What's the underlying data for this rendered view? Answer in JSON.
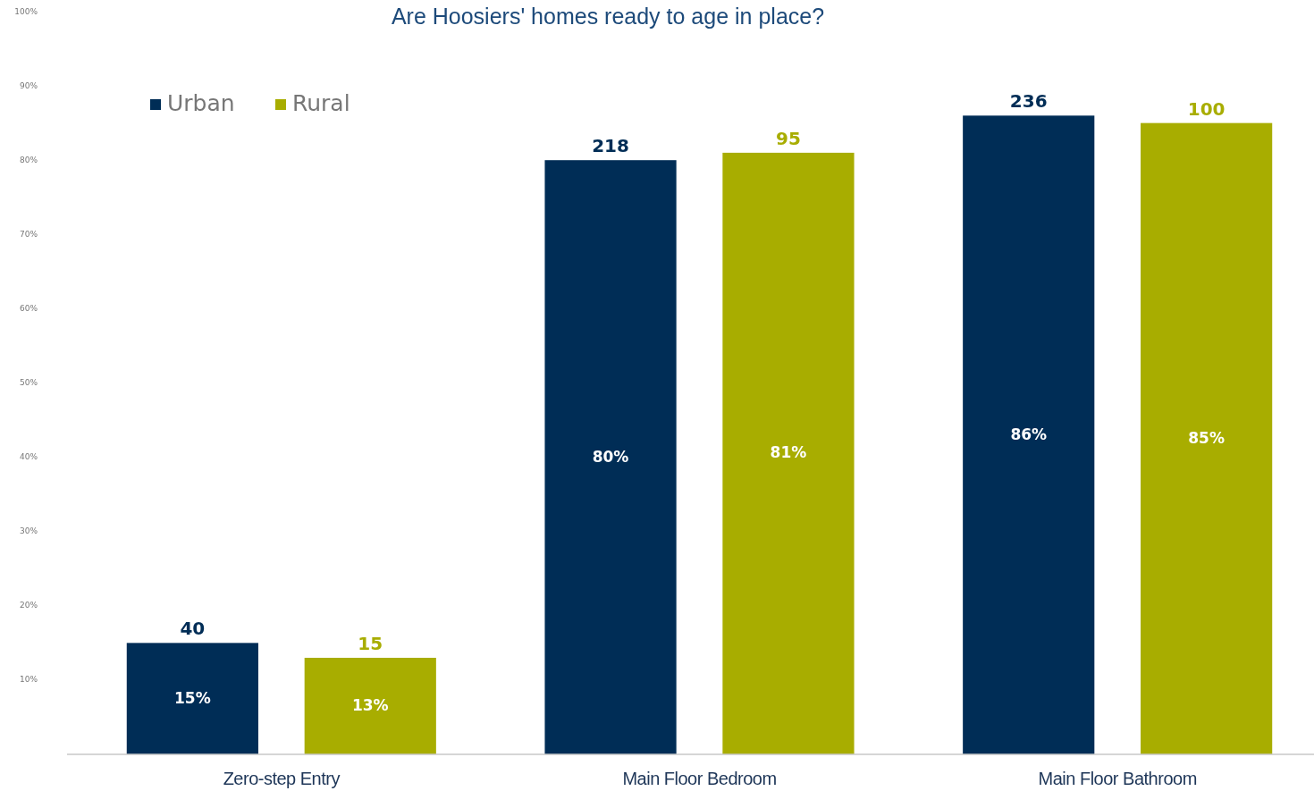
{
  "chart_data": {
    "type": "bar",
    "title": "Are Hoosiers' homes ready to age in place?",
    "categories": [
      "Zero-step Entry",
      "Main Floor Bedroom",
      "Main Floor Bathroom"
    ],
    "series": [
      {
        "name": "Urban",
        "color": "#002d56",
        "values": [
          15,
          80,
          86
        ],
        "value_labels": [
          "15%",
          "80%",
          "86%"
        ]
      },
      {
        "name": "Rural",
        "color": "#a8ad00",
        "values": [
          13,
          81,
          85
        ],
        "value_labels": [
          "13%",
          "81%",
          "85%"
        ]
      }
    ],
    "ylim": [
      0,
      100
    ],
    "yticks": [
      {
        "value": 10,
        "label": "10%"
      },
      {
        "value": 20,
        "label": "20%"
      },
      {
        "value": 30,
        "label": "30%"
      },
      {
        "value": 40,
        "label": "40%"
      },
      {
        "value": 50,
        "label": "50%"
      },
      {
        "value": 60,
        "label": "60%"
      },
      {
        "value": 70,
        "label": "70%"
      },
      {
        "value": 80,
        "label": "80%"
      },
      {
        "value": 90,
        "label": "90%"
      },
      {
        "value": 100,
        "label": "100%"
      }
    ],
    "grid": false,
    "legend": "top left",
    "annotations": [
      "40",
      "15",
      "218",
      "95",
      "236",
      "100"
    ]
  }
}
